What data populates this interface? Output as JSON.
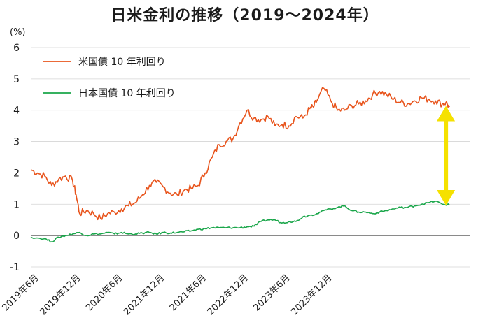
{
  "chart_data": {
    "type": "line",
    "title": "日米金利の推移（2019～2024年）",
    "ylabel": "(%)",
    "xlabel": "",
    "ylim": [
      -1,
      6
    ],
    "yticks": [
      -1,
      0,
      1,
      2,
      3,
      4,
      5,
      6
    ],
    "xlim": [
      0,
      63
    ],
    "x_ticks": [
      {
        "label": "2019年6月",
        "x": 0
      },
      {
        "label": "2019年12月",
        "x": 6
      },
      {
        "label": "2020年6月",
        "x": 12
      },
      {
        "label": "2021年12月",
        "x": 18
      },
      {
        "label": "2021年6月",
        "x": 24
      },
      {
        "label": "2022年12月",
        "x": 30
      },
      {
        "label": "2023年6月",
        "x": 36
      },
      {
        "label": "2023年12月",
        "x": 42
      }
    ],
    "grid": true,
    "legend_position": "top-left",
    "series": [
      {
        "name": "米国債 10 年利回り",
        "color": "#e8541c",
        "x": [
          0,
          1,
          2,
          3,
          4,
          5,
          6,
          6.5,
          7,
          8,
          9,
          10,
          11,
          12,
          13,
          14,
          15,
          16,
          17,
          18,
          19,
          20,
          21,
          22,
          23,
          24,
          25,
          26,
          27,
          28,
          29,
          30,
          31,
          32,
          33,
          34,
          35,
          36,
          37,
          38,
          39,
          40,
          40.5,
          41,
          42,
          43,
          44,
          45,
          46,
          47,
          48,
          49,
          50,
          51,
          52,
          53,
          54,
          55,
          56,
          57,
          58,
          59,
          59.5,
          60
        ],
        "values": [
          2.1,
          2.0,
          1.9,
          1.6,
          1.8,
          1.9,
          1.75,
          1.3,
          0.7,
          0.8,
          0.7,
          0.55,
          0.7,
          0.75,
          0.85,
          0.95,
          1.05,
          1.3,
          1.6,
          1.7,
          1.55,
          1.35,
          1.3,
          1.45,
          1.5,
          1.6,
          2.0,
          2.5,
          2.9,
          3.0,
          3.1,
          3.6,
          4.0,
          3.75,
          3.7,
          3.8,
          3.5,
          3.55,
          3.5,
          3.8,
          3.75,
          4.05,
          4.1,
          4.3,
          4.7,
          4.3,
          4.0,
          4.0,
          4.15,
          4.2,
          4.3,
          4.5,
          4.6,
          4.5,
          4.35,
          4.25,
          4.2,
          4.3,
          4.4,
          4.35,
          4.3,
          4.2,
          4.25,
          4.1
        ]
      },
      {
        "name": "日本国債 10 年利回り",
        "color": "#1aa64a",
        "x": [
          0,
          2,
          3,
          4,
          5,
          6,
          7,
          8,
          9,
          10,
          11,
          12,
          13,
          14,
          15,
          16,
          17,
          18,
          19,
          20,
          21,
          22,
          23,
          24,
          25,
          26,
          27,
          28,
          29,
          30,
          31,
          32,
          33,
          34,
          35,
          36,
          37,
          38,
          39,
          40,
          41,
          42,
          43,
          44,
          45,
          46,
          47,
          48,
          49,
          50,
          51,
          52,
          53,
          54,
          55,
          56,
          57,
          58,
          59,
          60
        ],
        "values": [
          -0.05,
          -0.1,
          -0.2,
          -0.05,
          0.0,
          0.05,
          0.1,
          0.0,
          0.05,
          0.05,
          0.1,
          0.05,
          0.1,
          0.05,
          0.05,
          0.08,
          0.1,
          0.05,
          0.1,
          0.08,
          0.1,
          0.12,
          0.15,
          0.2,
          0.22,
          0.25,
          0.25,
          0.25,
          0.25,
          0.25,
          0.28,
          0.3,
          0.45,
          0.5,
          0.5,
          0.4,
          0.45,
          0.45,
          0.6,
          0.65,
          0.7,
          0.8,
          0.85,
          0.9,
          0.95,
          0.8,
          0.75,
          0.75,
          0.7,
          0.75,
          0.8,
          0.85,
          0.9,
          0.9,
          0.95,
          1.0,
          1.05,
          1.1,
          1.0,
          0.98
        ]
      }
    ],
    "annotation": {
      "type": "double-arrow",
      "color": "#f5e100",
      "x": 59.5,
      "from": 1.05,
      "to": 4.05
    }
  }
}
